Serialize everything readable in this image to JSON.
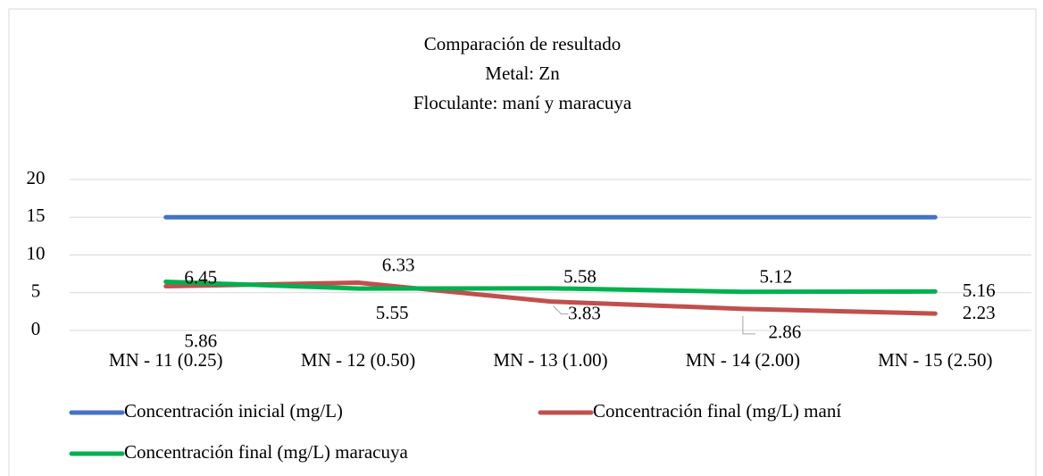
{
  "chart_data": {
    "type": "line",
    "title": "Comparación de resultado",
    "subtitle": [
      "Metal: Zn",
      "Floculante: maní y maracuya"
    ],
    "categories": [
      "MN - 11 (0.25)",
      "MN - 12 (0.50)",
      "MN - 13 (1.00)",
      "MN - 14 (2.00)",
      "MN - 15 (2.50)"
    ],
    "series": [
      {
        "name": "Concentración inicial (mg/L)",
        "color": "#4472c4",
        "values": [
          15,
          15,
          15,
          15,
          15
        ]
      },
      {
        "name": "Concentración final (mg/L) maní",
        "color": "#c0504d",
        "values": [
          5.86,
          6.33,
          3.83,
          2.86,
          2.23
        ]
      },
      {
        "name": "Concentración final (mg/L) maracuya",
        "color": "#00b050",
        "values": [
          6.45,
          5.55,
          5.58,
          5.12,
          5.16
        ]
      }
    ],
    "ylim": [
      0,
      20
    ],
    "yticks": [
      0,
      5,
      10,
      15,
      20
    ],
    "grid": true,
    "legend": "bottom"
  }
}
